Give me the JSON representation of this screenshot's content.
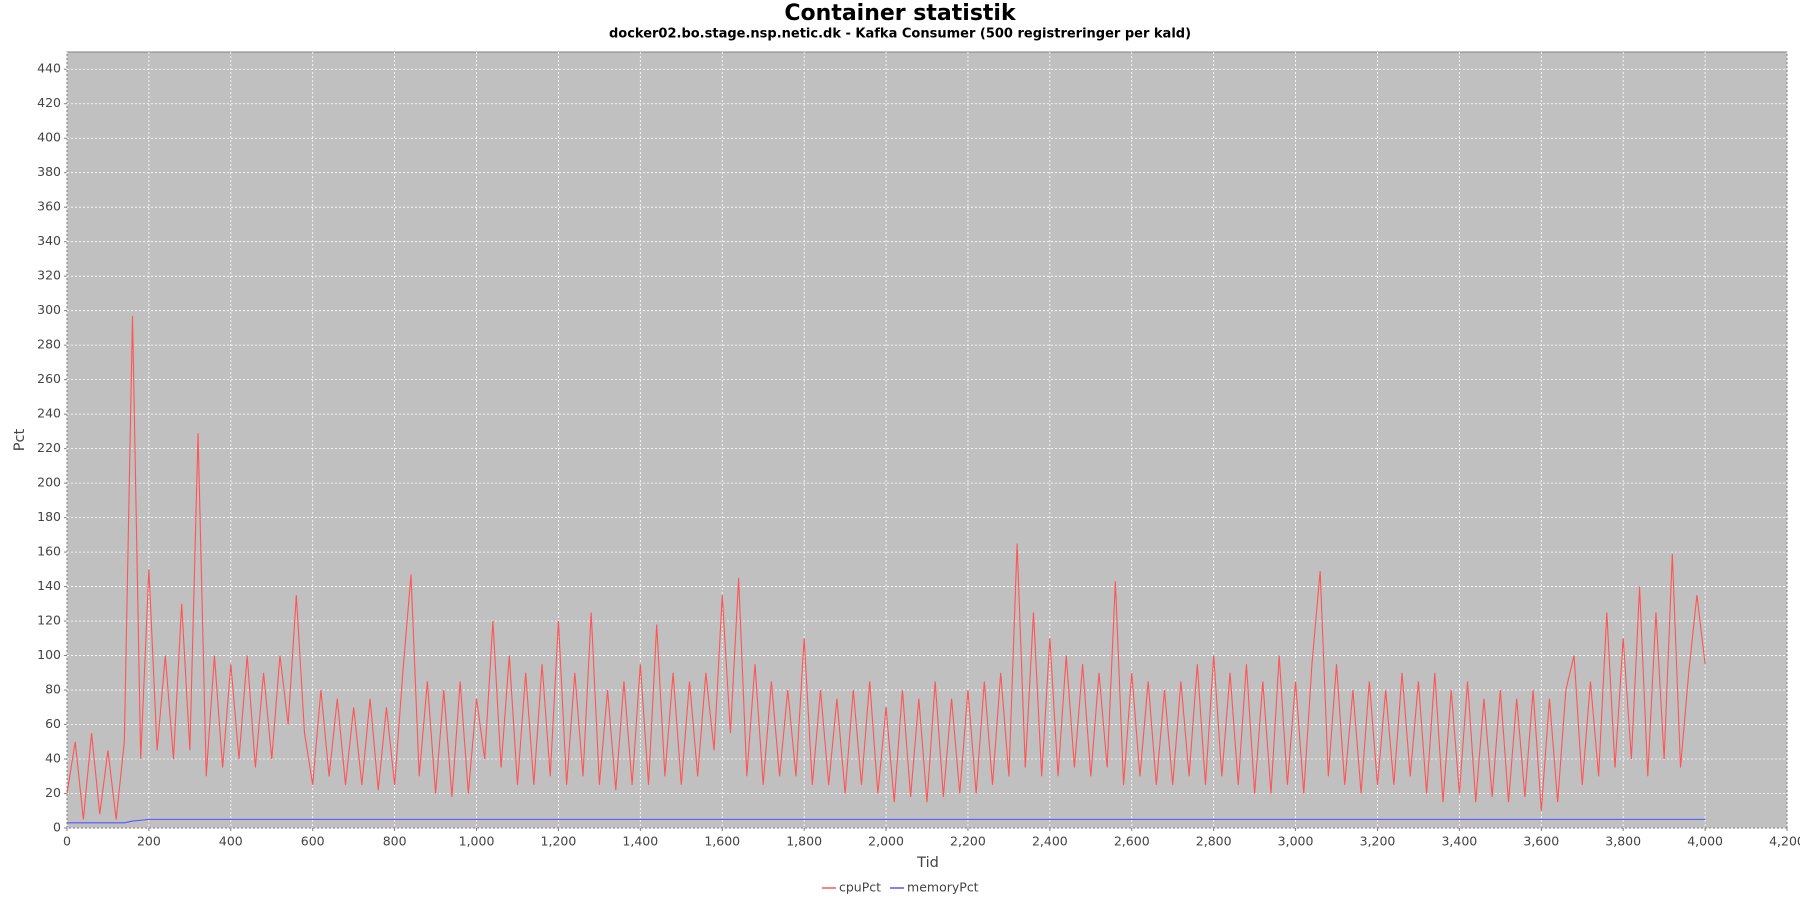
{
  "chart_data": {
    "type": "line",
    "title": "Container statistik",
    "subtitle": "docker02.bo.stage.nsp.netic.dk - Kafka Consumer (500 registreringer per kald)",
    "xlabel": "Tid",
    "ylabel": "Pct",
    "x": [
      0,
      20,
      40,
      60,
      80,
      100,
      120,
      140,
      160,
      180,
      200,
      220,
      240,
      260,
      280,
      300,
      320,
      340,
      360,
      380,
      400,
      420,
      440,
      460,
      480,
      500,
      520,
      540,
      560,
      580,
      600,
      620,
      640,
      660,
      680,
      700,
      720,
      740,
      760,
      780,
      800,
      820,
      840,
      860,
      880,
      900,
      920,
      940,
      960,
      980,
      1000,
      1020,
      1040,
      1060,
      1080,
      1100,
      1120,
      1140,
      1160,
      1180,
      1200,
      1220,
      1240,
      1260,
      1280,
      1300,
      1320,
      1340,
      1360,
      1380,
      1400,
      1420,
      1440,
      1460,
      1480,
      1500,
      1520,
      1540,
      1560,
      1580,
      1600,
      1620,
      1640,
      1660,
      1680,
      1700,
      1720,
      1740,
      1760,
      1780,
      1800,
      1820,
      1840,
      1860,
      1880,
      1900,
      1920,
      1940,
      1960,
      1980,
      2000,
      2020,
      2040,
      2060,
      2080,
      2100,
      2120,
      2140,
      2160,
      2180,
      2200,
      2220,
      2240,
      2260,
      2280,
      2300,
      2320,
      2340,
      2360,
      2380,
      2400,
      2420,
      2440,
      2460,
      2480,
      2500,
      2520,
      2540,
      2560,
      2580,
      2600,
      2620,
      2640,
      2660,
      2680,
      2700,
      2720,
      2740,
      2760,
      2780,
      2800,
      2820,
      2840,
      2860,
      2880,
      2900,
      2920,
      2940,
      2960,
      2980,
      3000,
      3020,
      3040,
      3060,
      3080,
      3100,
      3120,
      3140,
      3160,
      3180,
      3200,
      3220,
      3240,
      3260,
      3280,
      3300,
      3320,
      3340,
      3360,
      3380,
      3400,
      3420,
      3440,
      3460,
      3480,
      3500,
      3520,
      3540,
      3560,
      3580,
      3600,
      3620,
      3640,
      3660,
      3680,
      3700,
      3720,
      3740,
      3760,
      3780,
      3800,
      3820,
      3840,
      3860,
      3880,
      3900,
      3920,
      3940,
      3960,
      3980,
      4000
    ],
    "series": [
      {
        "name": "cpuPct",
        "color": "#ff5555",
        "values": [
          20,
          50,
          5,
          55,
          8,
          45,
          5,
          50,
          297,
          40,
          150,
          45,
          100,
          40,
          130,
          45,
          229,
          30,
          100,
          35,
          95,
          40,
          100,
          35,
          90,
          40,
          100,
          60,
          135,
          55,
          25,
          80,
          30,
          75,
          25,
          70,
          25,
          75,
          22,
          70,
          25,
          90,
          147,
          30,
          85,
          20,
          80,
          18,
          85,
          20,
          75,
          40,
          120,
          35,
          100,
          25,
          90,
          25,
          95,
          30,
          120,
          25,
          90,
          30,
          125,
          25,
          80,
          22,
          85,
          25,
          95,
          25,
          118,
          30,
          90,
          25,
          85,
          30,
          90,
          45,
          135,
          55,
          145,
          30,
          95,
          25,
          85,
          30,
          80,
          30,
          110,
          25,
          80,
          25,
          75,
          20,
          80,
          25,
          85,
          20,
          70,
          15,
          80,
          18,
          75,
          15,
          85,
          18,
          75,
          20,
          80,
          20,
          85,
          25,
          90,
          30,
          165,
          35,
          125,
          30,
          110,
          30,
          100,
          35,
          95,
          30,
          90,
          35,
          143,
          25,
          90,
          30,
          85,
          25,
          80,
          25,
          85,
          30,
          95,
          25,
          100,
          30,
          90,
          25,
          95,
          20,
          85,
          20,
          100,
          25,
          85,
          20,
          95,
          149,
          30,
          95,
          25,
          80,
          20,
          85,
          25,
          80,
          25,
          90,
          30,
          85,
          20,
          90,
          15,
          80,
          20,
          85,
          15,
          75,
          18,
          80,
          15,
          75,
          18,
          80,
          10,
          75,
          15,
          80,
          100,
          25,
          85,
          30,
          125,
          35,
          110,
          40,
          140,
          30,
          125,
          40,
          159,
          35,
          90,
          135,
          95
        ]
      },
      {
        "name": "memoryPct",
        "color": "#5555ff",
        "values": [
          3,
          3,
          3,
          3,
          3,
          3,
          3,
          3,
          4,
          4.5,
          5,
          5,
          5,
          5,
          5,
          5,
          5,
          5,
          5,
          5,
          5,
          5,
          5,
          5,
          5,
          5,
          5,
          5,
          5,
          5,
          5,
          5,
          5,
          5,
          5,
          5,
          5,
          5,
          5,
          5,
          5,
          5,
          5,
          5,
          5,
          5,
          5,
          5,
          5,
          5,
          5,
          5,
          5,
          5,
          5,
          5,
          5,
          5,
          5,
          5,
          5,
          5,
          5,
          5,
          5,
          5,
          5,
          5,
          5,
          5,
          5,
          5,
          5,
          5,
          5,
          5,
          5,
          5,
          5,
          5,
          5,
          5,
          5,
          5,
          5,
          5,
          5,
          5,
          5,
          5,
          5,
          5,
          5,
          5,
          5,
          5,
          5,
          5,
          5,
          5,
          5,
          5,
          5,
          5,
          5,
          5,
          5,
          5,
          5,
          5,
          5,
          5,
          5,
          5,
          5,
          5,
          5,
          5,
          5,
          5,
          5,
          5,
          5,
          5,
          5,
          5,
          5,
          5,
          5,
          5,
          5,
          5,
          5,
          5,
          5,
          5,
          5,
          5,
          5,
          5,
          5,
          5,
          5,
          5,
          5,
          5,
          5,
          5,
          5,
          5,
          5,
          5,
          5,
          5,
          5,
          5,
          5,
          5,
          5,
          5,
          5,
          5,
          5,
          5,
          5,
          5,
          5,
          5,
          5,
          5,
          5,
          5,
          5,
          5,
          5,
          5,
          5,
          5,
          5,
          5,
          5,
          5,
          5,
          5,
          5,
          5,
          5,
          5,
          5,
          5,
          5,
          5,
          5,
          5,
          5,
          5,
          5,
          5,
          5,
          5,
          5
        ]
      }
    ],
    "xlim": [
      0,
      4200
    ],
    "xticks": [
      0,
      200,
      400,
      600,
      800,
      {
        "value": 1000,
        "label": "1,000"
      },
      {
        "value": 1200,
        "label": "1,200"
      },
      {
        "value": 1400,
        "label": "1,400"
      },
      {
        "value": 1600,
        "label": "1,600"
      },
      {
        "value": 1800,
        "label": "1,800"
      },
      {
        "value": 2000,
        "label": "2,000"
      },
      {
        "value": 2200,
        "label": "2,200"
      },
      {
        "value": 2400,
        "label": "2,400"
      },
      {
        "value": 2600,
        "label": "2,600"
      },
      {
        "value": 2800,
        "label": "2,800"
      },
      {
        "value": 3000,
        "label": "3,000"
      },
      {
        "value": 3200,
        "label": "3,200"
      },
      {
        "value": 3400,
        "label": "3,400"
      },
      {
        "value": 3600,
        "label": "3,600"
      },
      {
        "value": 3800,
        "label": "3,800"
      },
      {
        "value": 4000,
        "label": "4,000"
      },
      {
        "value": 4200,
        "label": "4,200"
      }
    ],
    "ylim": [
      0,
      450
    ],
    "yticks": [
      0,
      20,
      40,
      60,
      80,
      100,
      120,
      140,
      160,
      180,
      200,
      220,
      240,
      260,
      280,
      300,
      320,
      340,
      360,
      380,
      400,
      420,
      440
    ],
    "grid": true,
    "legend": "bottom"
  }
}
